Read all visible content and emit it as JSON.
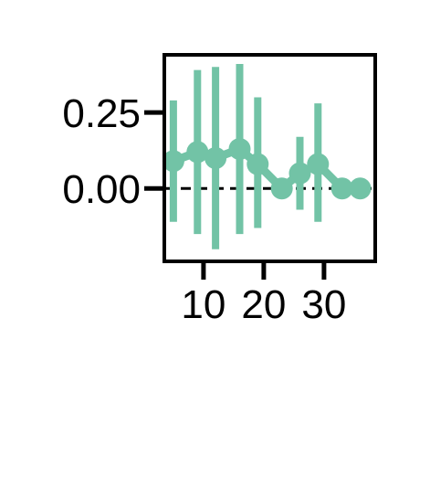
{
  "chart_data": {
    "type": "line",
    "title": "",
    "xlabel": "",
    "ylabel": "",
    "xlim": [
      3.5,
      38.5
    ],
    "ylim": [
      -0.24,
      0.44
    ],
    "xticks": [
      10,
      20,
      30
    ],
    "xtick_labels": [
      "10",
      "20",
      "30"
    ],
    "yticks": [
      0.0,
      0.25
    ],
    "ytick_labels": [
      "0.00",
      "0.25"
    ],
    "grid": false,
    "legend": "none",
    "reference_line": {
      "y": 0.0,
      "style": "dashed",
      "color": "#000000"
    },
    "series": [
      {
        "color": "#72c3a6",
        "x": [
          5,
          9,
          12,
          16,
          19,
          23,
          26,
          29,
          33,
          36
        ],
        "y": [
          0.09,
          0.12,
          0.1,
          0.13,
          0.08,
          0.0,
          0.05,
          0.08,
          0.0,
          0.0
        ],
        "err_low": [
          -0.11,
          -0.15,
          -0.2,
          -0.15,
          -0.13,
          0.0,
          -0.07,
          -0.11,
          0.0,
          0.0
        ],
        "err_high": [
          0.29,
          0.39,
          0.4,
          0.41,
          0.3,
          0.0,
          0.17,
          0.28,
          0.0,
          0.0
        ]
      }
    ]
  }
}
